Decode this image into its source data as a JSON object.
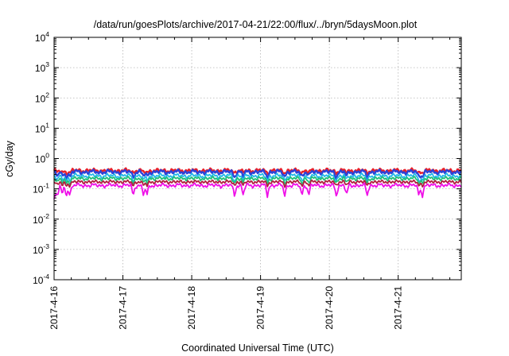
{
  "chart_data": {
    "type": "line",
    "title": "/data/run/goesPlots/archive/2017-04-21/22:00/flux/../bryn/5daysMoon.plot",
    "xlabel": "Coordinated Universal Time (UTC)",
    "ylabel": "cGy/day",
    "y_scale": "log",
    "ylim": [
      0.0001,
      10000
    ],
    "y_ticks": [
      {
        "base": "10",
        "exp": "-4",
        "value": 0.0001
      },
      {
        "base": "10",
        "exp": "-3",
        "value": 0.001
      },
      {
        "base": "10",
        "exp": "-2",
        "value": 0.01
      },
      {
        "base": "10",
        "exp": "-1",
        "value": 0.1
      },
      {
        "base": "10",
        "exp": "0",
        "value": 1
      },
      {
        "base": "10",
        "exp": "1",
        "value": 10
      },
      {
        "base": "10",
        "exp": "2",
        "value": 100
      },
      {
        "base": "10",
        "exp": "3",
        "value": 1000
      },
      {
        "base": "10",
        "exp": "4",
        "value": 10000
      }
    ],
    "xlim": [
      "2017-04-16 00:00",
      "2017-04-21 22:00"
    ],
    "x_ticks": [
      "2017-4-16",
      "2017-4-17",
      "2017-4-18",
      "2017-4-19",
      "2017-4-20",
      "2017-4-21"
    ],
    "grid": true,
    "legend": "none",
    "series": [
      {
        "color": "#e8202a",
        "base": 0.4,
        "amp": 0.12,
        "dip_depth": 0.15,
        "phase": 0.0
      },
      {
        "color": "#2b43d8",
        "base": 0.36,
        "amp": 0.14,
        "dip_depth": 0.3,
        "phase": 0.7
      },
      {
        "color": "#21b8e8",
        "base": 0.27,
        "amp": 0.14,
        "dip_depth": 0.3,
        "phase": 1.3
      },
      {
        "color": "#21c07a",
        "base": 0.22,
        "amp": 0.1,
        "dip_depth": 0.3,
        "phase": 1.9
      },
      {
        "color": "#b01f3e",
        "base": 0.17,
        "amp": 0.08,
        "dip_depth": 0.25,
        "phase": 2.4
      },
      {
        "color": "#ef10e8",
        "base": 0.13,
        "amp": 0.12,
        "dip_depth": 0.55,
        "phase": 3.1
      }
    ],
    "dips_days": [
      0.05,
      0.12,
      0.18,
      0.23,
      1.15,
      1.3,
      1.35,
      2.62,
      2.75,
      3.1,
      3.35,
      3.6,
      3.7,
      4.1,
      4.25,
      4.55,
      5.3,
      5.35
    ],
    "notes_hours": [
      0,
      142
    ]
  }
}
